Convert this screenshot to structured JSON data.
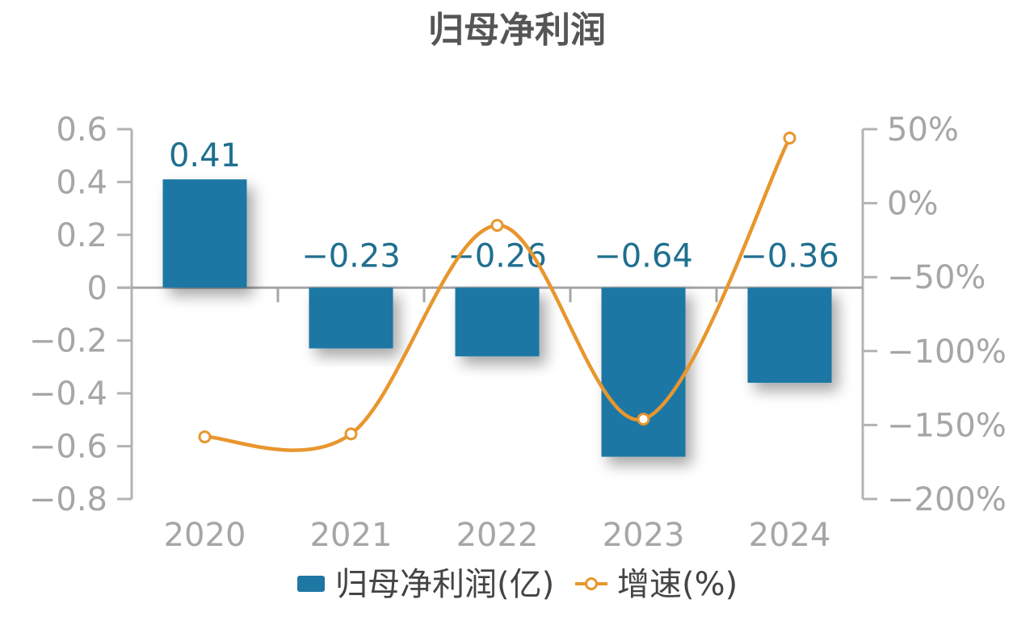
{
  "chart_data": {
    "type": "bar",
    "title": "归母净利润",
    "categories": [
      "2020",
      "2021",
      "2022",
      "2023",
      "2024"
    ],
    "series": [
      {
        "name": "归母净利润(亿)",
        "type": "bar",
        "axis": "left",
        "color": "#1f77a4",
        "values": [
          0.41,
          -0.23,
          -0.26,
          -0.64,
          -0.36
        ],
        "labels": [
          "0.41",
          "-0.23",
          "-0.26",
          "-0.64",
          "-0.36"
        ]
      },
      {
        "name": "增速(%)",
        "type": "line",
        "axis": "right",
        "color": "#e8962e",
        "values": [
          -158,
          -156,
          -15,
          -146,
          44
        ]
      }
    ],
    "y_left": {
      "ylim": [
        -0.8,
        0.6
      ],
      "ticks": [
        "0.6",
        "0.4",
        "0.2",
        "0",
        "-0.2",
        "-0.4",
        "-0.6",
        "-0.8"
      ],
      "tick_values": [
        0.6,
        0.4,
        0.2,
        0,
        -0.2,
        -0.4,
        -0.6,
        -0.8
      ]
    },
    "y_right": {
      "ylim": [
        -200,
        50
      ],
      "ticks": [
        "50%",
        "0%",
        "-50%",
        "-100%",
        "-150%",
        "-200%"
      ],
      "tick_values": [
        50,
        0,
        -50,
        -100,
        -150,
        -200
      ]
    },
    "legend_position": "bottom",
    "grid": false
  }
}
